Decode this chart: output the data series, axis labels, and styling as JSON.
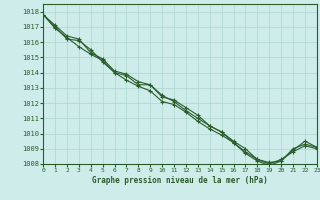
{
  "title": "Graphe pression niveau de la mer (hPa)",
  "xlim": [
    0,
    23
  ],
  "ylim": [
    1008,
    1018.5
  ],
  "yticks": [
    1008,
    1009,
    1010,
    1011,
    1012,
    1013,
    1014,
    1015,
    1016,
    1017,
    1018
  ],
  "xticks": [
    0,
    1,
    2,
    3,
    4,
    5,
    6,
    7,
    8,
    9,
    10,
    11,
    12,
    13,
    14,
    15,
    16,
    17,
    18,
    19,
    20,
    21,
    22,
    23
  ],
  "bg_color": "#ceecea",
  "line_color": "#2a5c2a",
  "grid_color": "#aed4d0",
  "series": [
    [
      1017.8,
      1017.0,
      1016.2,
      1016.1,
      1015.5,
      1014.7,
      1014.0,
      1013.8,
      1013.2,
      1013.2,
      1012.5,
      1012.1,
      1011.5,
      1011.0,
      1010.5,
      1010.1,
      1009.5,
      1009.0,
      1008.3,
      1008.1,
      1008.2,
      1009.0,
      1009.3,
      1009.1
    ],
    [
      1017.8,
      1016.9,
      1016.3,
      1015.7,
      1015.2,
      1014.8,
      1014.0,
      1013.5,
      1013.1,
      1012.8,
      1012.1,
      1011.9,
      1011.4,
      1010.8,
      1010.3,
      1009.9,
      1009.4,
      1008.8,
      1008.3,
      1008.0,
      1008.3,
      1008.8,
      1009.2,
      1009.0
    ],
    [
      1017.8,
      1017.1,
      1016.4,
      1016.2,
      1015.3,
      1014.9,
      1014.1,
      1013.9,
      1013.4,
      1013.2,
      1012.4,
      1012.2,
      1011.7,
      1011.2,
      1010.5,
      1010.1,
      1009.4,
      1008.7,
      1008.2,
      1007.9,
      1008.2,
      1008.9,
      1009.5,
      1009.1
    ]
  ]
}
